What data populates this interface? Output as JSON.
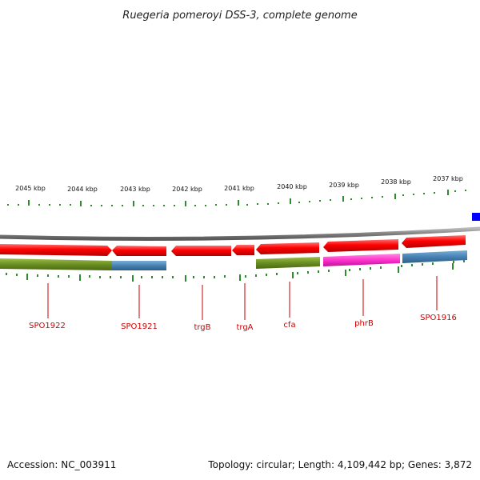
{
  "title": "Ruegeria pomeroyi DSS-3, complete genome",
  "footer": {
    "accession": "Accession: NC_003911",
    "topology": "Topology: circular; Length: 4,109,442 bp; Genes: 3,872"
  },
  "colors": {
    "forward_red": "#ff1a1a",
    "olive": "#6b8e23",
    "steel_blue": "#4682b4",
    "magenta": "#ff33cc",
    "tick_green": "#2e8b2e",
    "label_red": "#cc0000",
    "backbone": "#8a8a8a",
    "edge_blue": "#0000ff"
  },
  "kbp_ticks": [
    "2045 kbp",
    "2044 kbp",
    "2043 kbp",
    "2042 kbp",
    "2041 kbp",
    "2040 kbp",
    "2039 kbp",
    "2038 kbp",
    "2037 kbp"
  ],
  "genes": [
    {
      "label": "SPO1922",
      "kind": "olive"
    },
    {
      "label": "SPO1921",
      "kind": "steel_blue"
    },
    {
      "label": "trgB",
      "kind": "none"
    },
    {
      "label": "trgA",
      "kind": "none"
    },
    {
      "label": "cfa",
      "kind": "olive"
    },
    {
      "label": "phrB",
      "kind": "magenta"
    },
    {
      "label": "SPO1916",
      "kind": "steel_blue"
    }
  ]
}
